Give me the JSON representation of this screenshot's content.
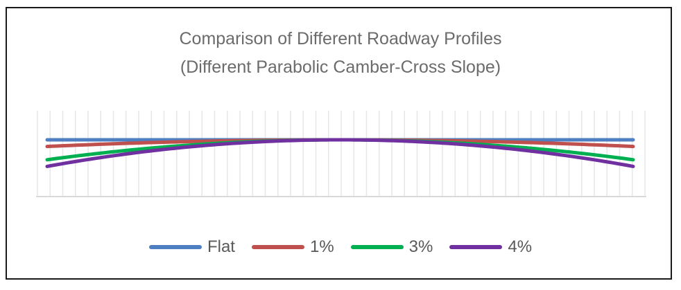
{
  "chart_data": {
    "type": "line",
    "title": "Comparison of Different Roadway Profiles",
    "subtitle": "(Different Parabolic Camber-Cross Slope)",
    "x_range": [
      -1,
      1
    ],
    "grid": "vertical",
    "legend_position": "bottom",
    "series": [
      {
        "name": "Flat",
        "color": "#4f7fc3",
        "shape": "parabolic",
        "edge_drop": 0
      },
      {
        "name": "1%",
        "color": "#c0504d",
        "shape": "parabolic",
        "edge_drop": 1
      },
      {
        "name": "3%",
        "color": "#00b050",
        "shape": "parabolic",
        "edge_drop": 3
      },
      {
        "name": "4%",
        "color": "#7030a0",
        "shape": "parabolic",
        "edge_drop": 4
      }
    ]
  }
}
